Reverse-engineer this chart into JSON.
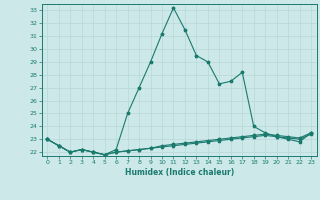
{
  "xlabel": "Humidex (Indice chaleur)",
  "bg_color": "#cce8e8",
  "line_color": "#1a7a6e",
  "grid_color": "#b8d8d8",
  "xlim": [
    -0.5,
    23.5
  ],
  "ylim": [
    21.7,
    33.5
  ],
  "xticks": [
    0,
    1,
    2,
    3,
    4,
    5,
    6,
    7,
    8,
    9,
    10,
    11,
    12,
    13,
    14,
    15,
    16,
    17,
    18,
    19,
    20,
    21,
    22,
    23
  ],
  "yticks": [
    22,
    23,
    24,
    25,
    26,
    27,
    28,
    29,
    30,
    31,
    32,
    33
  ],
  "series1_x": [
    0,
    1,
    2,
    3,
    4,
    5,
    6,
    7,
    8,
    9,
    10,
    11,
    12,
    13,
    14,
    15,
    16,
    17,
    18,
    19,
    20,
    21,
    22,
    23
  ],
  "series1_y": [
    23.0,
    22.5,
    22.0,
    22.2,
    22.0,
    21.8,
    22.2,
    25.0,
    27.0,
    29.0,
    31.2,
    33.2,
    31.5,
    29.5,
    29.0,
    27.3,
    27.5,
    28.2,
    24.0,
    23.5,
    23.2,
    23.0,
    22.8,
    23.5
  ],
  "series2_x": [
    0,
    1,
    2,
    3,
    4,
    5,
    6,
    7,
    8,
    9,
    10,
    11,
    12,
    13,
    14,
    15,
    16,
    17,
    18,
    19,
    20,
    21,
    22,
    23
  ],
  "series2_y": [
    23.0,
    22.5,
    22.0,
    22.2,
    22.0,
    21.8,
    22.0,
    22.1,
    22.2,
    22.3,
    22.4,
    22.5,
    22.6,
    22.7,
    22.8,
    22.9,
    23.0,
    23.1,
    23.2,
    23.3,
    23.2,
    23.1,
    23.0,
    23.4
  ],
  "series3_x": [
    0,
    1,
    2,
    3,
    4,
    5,
    6,
    7,
    8,
    9,
    10,
    11,
    12,
    13,
    14,
    15,
    16,
    17,
    18,
    19,
    20,
    21,
    22,
    23
  ],
  "series3_y": [
    23.0,
    22.5,
    22.0,
    22.2,
    22.0,
    21.8,
    22.0,
    22.1,
    22.2,
    22.3,
    22.5,
    22.6,
    22.7,
    22.8,
    22.9,
    23.0,
    23.1,
    23.2,
    23.3,
    23.4,
    23.3,
    23.2,
    23.1,
    23.5
  ]
}
